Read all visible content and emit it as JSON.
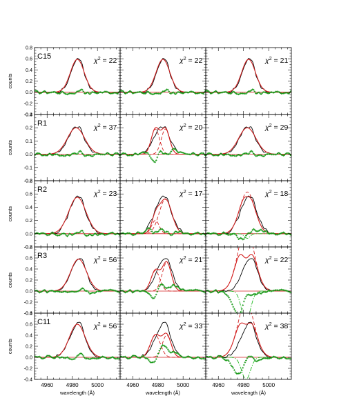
{
  "chart_data": {
    "type": "line",
    "title": "",
    "xlabel": "wavelength (Å)",
    "ylabel": "counts",
    "xlim": [
      4950,
      5018
    ],
    "xticks": [
      4960,
      4980,
      5000
    ],
    "colors": {
      "data": "#000000",
      "model": "#d21f1f",
      "component": "#d21f1f",
      "residual": "#1a9a1a",
      "absorption": "#22bb22"
    },
    "rows": [
      {
        "label": "C15",
        "ylim": [
          -0.4,
          0.8
        ],
        "yticks": [
          -0.4,
          -0.2,
          0.0,
          0.2,
          0.4,
          0.6,
          0.8
        ],
        "chi2": [
          "22",
          "22",
          "21"
        ],
        "line": {
          "center": 4984,
          "amp": 0.59,
          "sigma": 5.2
        },
        "components": [
          [],
          [],
          []
        ]
      },
      {
        "label": "R1",
        "ylim": [
          -0.2,
          0.3
        ],
        "yticks": [
          -0.2,
          -0.1,
          0.0,
          0.1,
          0.2,
          0.3
        ],
        "chi2": [
          "37",
          "20",
          "29"
        ],
        "line": {
          "center": 4983,
          "amp": 0.2,
          "sigma": 6.5
        },
        "components": [
          [],
          [
            {
              "center": 4978,
              "amp": 0.19,
              "sigma": 3.3
            },
            {
              "center": 4986,
              "amp": 0.19,
              "sigma": 3.3
            }
          ],
          []
        ]
      },
      {
        "label": "R2",
        "ylim": [
          -0.2,
          0.8
        ],
        "yticks": [
          -0.2,
          0.0,
          0.2,
          0.4,
          0.6,
          0.8
        ],
        "chi2": [
          "23",
          "17",
          "18"
        ],
        "line": {
          "center": 4984,
          "amp": 0.55,
          "sigma": 6.5
        },
        "components": [
          [],
          [
            {
              "center": 4978,
              "amp": 0.2,
              "sigma": 3.0
            },
            {
              "center": 4986,
              "amp": 0.52,
              "sigma": 5.0
            }
          ],
          [
            {
              "center": 4983,
              "amp": 0.63,
              "sigma": 6.0
            },
            {
              "center": 4983,
              "amp": -0.07,
              "sigma": 2.2
            }
          ]
        ]
      },
      {
        "label": "R3",
        "ylim": [
          -0.4,
          0.8
        ],
        "yticks": [
          -0.4,
          -0.2,
          0.0,
          0.2,
          0.4,
          0.6,
          0.8
        ],
        "chi2": [
          "56",
          "21",
          "22"
        ],
        "line": {
          "center": 4985,
          "amp": 0.58,
          "sigma": 6.0
        },
        "components": [
          [],
          [
            {
              "center": 4978,
              "amp": 0.37,
              "sigma": 3.5
            },
            {
              "center": 4987,
              "amp": 0.52,
              "sigma": 3.6
            }
          ],
          [
            {
              "center": 4982,
              "amp": 1.15,
              "sigma": 6.5
            },
            {
              "center": 4982,
              "amp": -0.55,
              "sigma": 3.5
            }
          ]
        ]
      },
      {
        "label": "C11",
        "ylim": [
          -0.4,
          0.8
        ],
        "yticks": [
          -0.4,
          -0.2,
          0.0,
          0.2,
          0.4,
          0.6,
          0.8
        ],
        "chi2": [
          "56",
          "33",
          "38"
        ],
        "line": {
          "center": 4984,
          "amp": 0.6,
          "sigma": 6.0
        },
        "components": [
          [],
          [
            {
              "center": 4978,
              "amp": 0.4,
              "sigma": 4.0
            },
            {
              "center": 4987,
              "amp": 0.4,
              "sigma": 3.5
            }
          ],
          [
            {
              "center": 4982,
              "amp": 1.0,
              "sigma": 6.5
            },
            {
              "center": 4982,
              "amp": -0.4,
              "sigma": 3.5
            }
          ]
        ]
      }
    ]
  }
}
